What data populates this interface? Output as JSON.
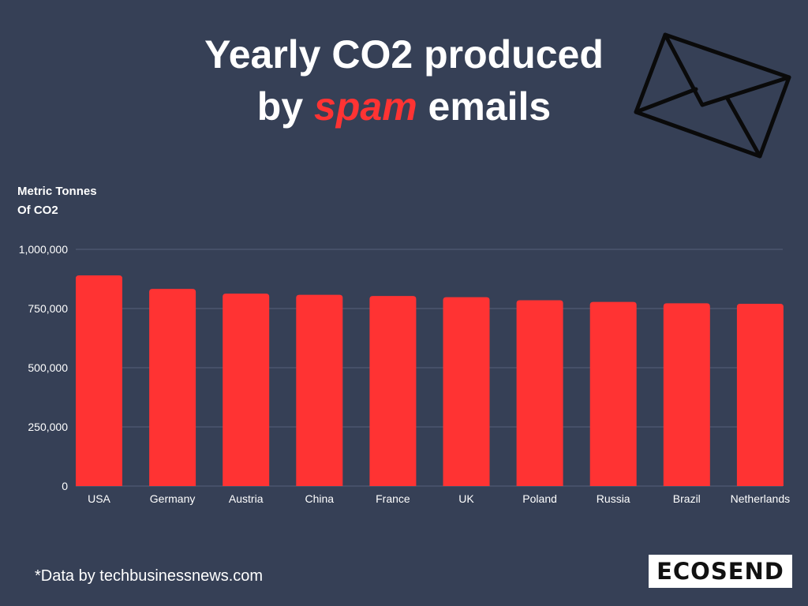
{
  "title_line1": "Yearly CO2 produced",
  "title_line2_pre": "by ",
  "title_line2_highlight": "spam",
  "title_line2_post": " emails",
  "ylabel_line1": "Metric Tonnes",
  "ylabel_line2": "Of CO2",
  "footnote": "*Data by techbusinessnews.com",
  "logo_text": "ECOSEND",
  "colors": {
    "background": "#364056",
    "bar": "#ff3333",
    "highlight": "#ff3333",
    "text": "#ffffff"
  },
  "icons": {
    "envelope": "envelope-icon"
  },
  "chart_data": {
    "type": "bar",
    "categories": [
      "USA",
      "Germany",
      "Austria",
      "China",
      "France",
      "UK",
      "Poland",
      "Russia",
      "Brazil",
      "Netherlands"
    ],
    "values": [
      890000,
      833000,
      813000,
      808000,
      803000,
      798000,
      785000,
      778000,
      772000,
      770000
    ],
    "ylabel": "Metric Tonnes Of CO2",
    "ylim": [
      0,
      1000000
    ],
    "yticks": [
      0,
      250000,
      500000,
      750000,
      1000000
    ],
    "ytick_labels": [
      "0",
      "250,000",
      "500,000",
      "750,000",
      "1,000,000"
    ],
    "grid": true,
    "legend": "none"
  }
}
